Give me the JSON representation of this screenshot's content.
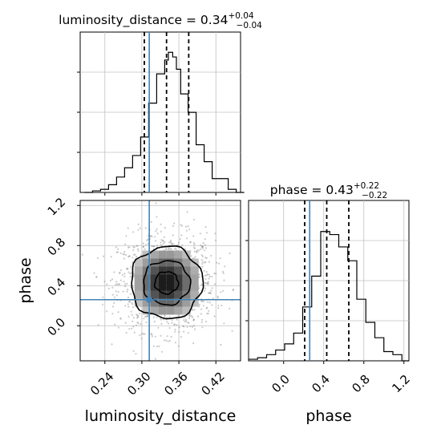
{
  "chart_data": [
    {
      "type": "histogram",
      "panel": "top-left",
      "parameter": "luminosity_distance",
      "title": {
        "prefix": "luminosity_distance = ",
        "median": "0.34",
        "upper": "+0.04",
        "lower": "−0.04"
      },
      "xlim": [
        0.2,
        0.46
      ],
      "bins": [
        [
          0.207,
          0.22,
          0
        ],
        [
          0.22,
          0.233,
          0.01
        ],
        [
          0.233,
          0.246,
          0.02
        ],
        [
          0.246,
          0.259,
          0.05
        ],
        [
          0.259,
          0.272,
          0.1
        ],
        [
          0.272,
          0.285,
          0.16
        ],
        [
          0.285,
          0.298,
          0.24
        ],
        [
          0.298,
          0.311,
          0.36
        ],
        [
          0.311,
          0.324,
          0.58
        ],
        [
          0.324,
          0.337,
          0.77
        ],
        [
          0.337,
          0.343,
          0.86
        ],
        [
          0.343,
          0.35,
          0.91
        ],
        [
          0.35,
          0.356,
          0.88
        ],
        [
          0.356,
          0.363,
          0.8
        ],
        [
          0.363,
          0.375,
          0.64
        ],
        [
          0.375,
          0.388,
          0.52
        ],
        [
          0.388,
          0.401,
          0.31
        ],
        [
          0.401,
          0.414,
          0.2
        ],
        [
          0.414,
          0.427,
          0.09
        ],
        [
          0.427,
          0.44,
          0.09
        ],
        [
          0.44,
          0.453,
          0.02
        ],
        [
          0.453,
          0.466,
          0
        ]
      ],
      "quantiles": [
        0.304,
        0.34,
        0.376
      ],
      "truth": 0.312,
      "ymax": 1.0
    },
    {
      "type": "histogram",
      "panel": "bottom-right",
      "parameter": "phase",
      "title": {
        "prefix": "phase = ",
        "median": "0.43",
        "upper": "+0.22",
        "lower": "−0.22"
      },
      "xlim": [
        -0.35,
        1.25
      ],
      "xticks": [
        "0.0",
        "0.4",
        "0.8",
        "1.2"
      ],
      "bins": [
        [
          -0.35,
          -0.26,
          0.01
        ],
        [
          -0.26,
          -0.17,
          0.02
        ],
        [
          -0.17,
          -0.08,
          0.04
        ],
        [
          -0.08,
          0.01,
          0.07
        ],
        [
          0.01,
          0.1,
          0.11
        ],
        [
          0.1,
          0.19,
          0.18
        ],
        [
          0.19,
          0.28,
          0.35
        ],
        [
          0.28,
          0.37,
          0.55
        ],
        [
          0.37,
          0.46,
          0.84
        ],
        [
          0.46,
          0.55,
          0.82
        ],
        [
          0.55,
          0.64,
          0.74
        ],
        [
          0.64,
          0.73,
          0.65
        ],
        [
          0.73,
          0.82,
          0.4
        ],
        [
          0.82,
          0.91,
          0.25
        ],
        [
          0.91,
          1.0,
          0.15
        ],
        [
          1.0,
          1.09,
          0.06
        ],
        [
          1.09,
          1.18,
          0.04
        ],
        [
          1.18,
          1.25,
          0
        ]
      ],
      "quantiles": [
        0.21,
        0.43,
        0.65
      ],
      "truth": 0.26,
      "ymax": 1.0
    },
    {
      "type": "scatter",
      "panel": "bottom-left",
      "xlabel": "luminosity_distance",
      "ylabel": "phase",
      "xlim": [
        0.2,
        0.46
      ],
      "ylim": [
        -0.35,
        1.25
      ],
      "xticks": [
        "0.24",
        "0.30",
        "0.36",
        "0.42"
      ],
      "yticks": [
        "0.0",
        "0.4",
        "0.8",
        "1.2"
      ],
      "truth": [
        0.312,
        0.26
      ],
      "peak": [
        0.34,
        0.43
      ],
      "sigma": [
        0.034,
        0.22
      ],
      "contours": [
        {
          "level": "inner",
          "rx": 0.019,
          "ry": 0.11
        },
        {
          "level": "middle",
          "rx": 0.038,
          "ry": 0.22
        },
        {
          "level": "outer",
          "rx": 0.058,
          "ry": 0.36
        }
      ],
      "colors": {
        "truth": "#4682b4",
        "line": "#000000",
        "points": "#8c8c8c",
        "grid": "#c0c0c0"
      }
    }
  ]
}
